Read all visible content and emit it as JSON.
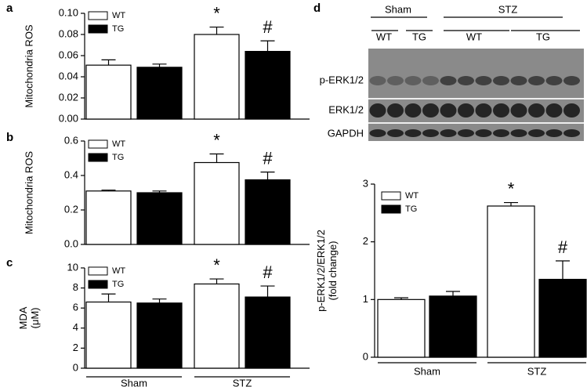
{
  "chart_data": [
    {
      "type": "bar",
      "panel": "a",
      "ylabel": [
        "Mitochondria ROS"
      ],
      "series": [
        {
          "name": "WT",
          "color": "#ffffff",
          "values": [
            0.051,
            0.08
          ],
          "errors": [
            0.005,
            0.007
          ]
        },
        {
          "name": "TG",
          "color": "#000000",
          "values": [
            0.049,
            0.064
          ],
          "errors": [
            0.003,
            0.01
          ]
        }
      ],
      "annotations": [
        "*",
        "#"
      ],
      "ylim": [
        0,
        0.1
      ],
      "yticks": [
        {
          "value": 0,
          "label": "0.00"
        },
        {
          "value": 0.02,
          "label": "0.02"
        },
        {
          "value": 0.04,
          "label": "0.04"
        },
        {
          "value": 0.06,
          "label": "0.06"
        },
        {
          "value": 0.08,
          "label": "0.08"
        },
        {
          "value": 0.1,
          "label": "0.10"
        }
      ]
    },
    {
      "type": "bar",
      "panel": "b",
      "ylabel": [
        "Mitochondria ROS"
      ],
      "series": [
        {
          "name": "WT",
          "color": "#ffffff",
          "values": [
            0.31,
            0.475
          ],
          "errors": [
            0.005,
            0.05
          ]
        },
        {
          "name": "TG",
          "color": "#000000",
          "values": [
            0.3,
            0.375
          ],
          "errors": [
            0.01,
            0.045
          ]
        }
      ],
      "annotations": [
        "*",
        "#"
      ],
      "ylim": [
        0,
        0.6
      ],
      "yticks": [
        {
          "value": 0,
          "label": "0.0"
        },
        {
          "value": 0.2,
          "label": "0.2"
        },
        {
          "value": 0.4,
          "label": "0.4"
        },
        {
          "value": 0.6,
          "label": "0.6"
        }
      ]
    },
    {
      "type": "bar",
      "panel": "c",
      "ylabel": [
        "MDA",
        "(μM)"
      ],
      "categories": [
        "Sham",
        "STZ"
      ],
      "series": [
        {
          "name": "WT",
          "color": "#ffffff",
          "values": [
            6.6,
            8.4
          ],
          "errors": [
            0.8,
            0.5
          ]
        },
        {
          "name": "TG",
          "color": "#000000",
          "values": [
            6.5,
            7.1
          ],
          "errors": [
            0.4,
            1.1
          ]
        }
      ],
      "annotations": [
        "*",
        "#"
      ],
      "ylim": [
        0,
        10
      ],
      "yticks": [
        0,
        2,
        4,
        6,
        8,
        10
      ]
    },
    {
      "type": "bar",
      "panel": "d",
      "ylabel": [
        "p-ERK1/2/ERK1/2",
        "(fold change)"
      ],
      "categories": [
        "Sham",
        "STZ"
      ],
      "series": [
        {
          "name": "WT",
          "color": "#ffffff",
          "values": [
            1.0,
            2.62
          ],
          "errors": [
            0.03,
            0.06
          ]
        },
        {
          "name": "TG",
          "color": "#000000",
          "values": [
            1.06,
            1.35
          ],
          "errors": [
            0.08,
            0.32
          ]
        }
      ],
      "annotations": [
        "*",
        "#"
      ],
      "ylim": [
        0,
        3
      ],
      "yticks": [
        0,
        1,
        2,
        3
      ]
    }
  ],
  "blot": {
    "groups": [
      "Sham",
      "STZ"
    ],
    "subgroups": [
      "WT",
      "TG",
      "WT",
      "TG"
    ],
    "rows": [
      "p-ERK1/2",
      "ERK1/2",
      "GAPDH"
    ]
  }
}
